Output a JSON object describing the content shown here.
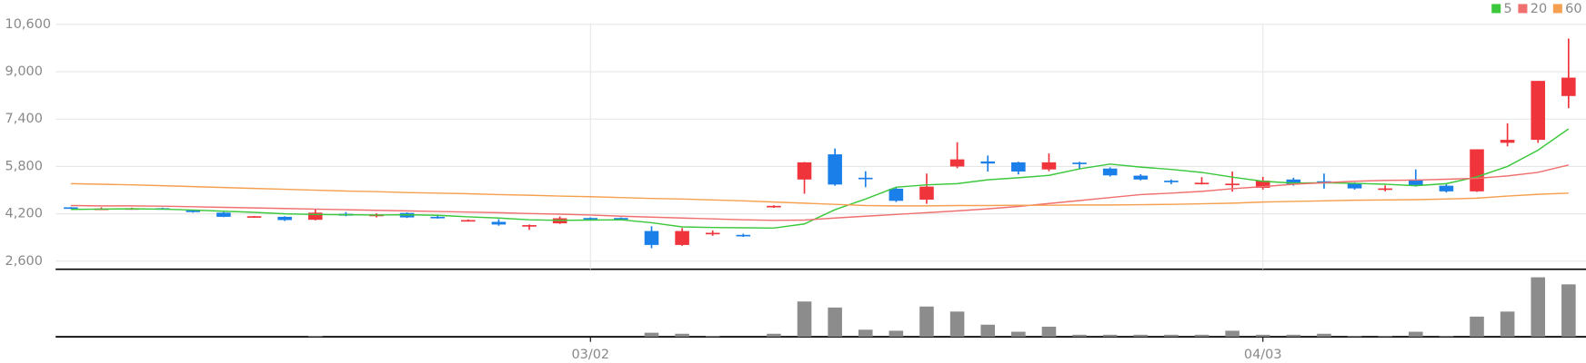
{
  "chart_data": {
    "type": "candlestick",
    "categories": [
      null,
      null,
      null,
      null,
      null,
      null,
      null,
      null,
      null,
      null,
      null,
      null,
      null,
      null,
      null,
      null,
      null,
      "03/02",
      null,
      null,
      null,
      null,
      null,
      null,
      null,
      null,
      null,
      null,
      null,
      null,
      null,
      null,
      null,
      null,
      null,
      null,
      null,
      null,
      null,
      "04/03",
      null,
      null,
      null,
      null,
      null,
      null,
      null,
      null,
      null,
      null
    ],
    "up_color": "#f0343c",
    "down_color": "#1a7fe8",
    "open": [
      4420,
      4360,
      4370,
      4390,
      4310,
      4240,
      4100,
      4100,
      4000,
      4200,
      4120,
      4230,
      4100,
      3960,
      3930,
      3790,
      3880,
      4060,
      4060,
      3620,
      3150,
      3520,
      3490,
      4420,
      5360,
      6210,
      5420,
      5050,
      4680,
      5800,
      5970,
      5940,
      5700,
      5930,
      5730,
      5490,
      5320,
      5220,
      5180,
      5080,
      5360,
      5300,
      5220,
      5010,
      5360,
      5150,
      4960,
      6600,
      6700,
      8180
    ],
    "high": [
      4430,
      4420,
      4410,
      4410,
      4340,
      4260,
      4130,
      4120,
      4370,
      4260,
      4220,
      4250,
      4130,
      4010,
      4020,
      3840,
      4110,
      4080,
      4080,
      3780,
      3720,
      3640,
      3530,
      4490,
      5950,
      6410,
      5640,
      5090,
      5560,
      6620,
      6170,
      5960,
      6240,
      5960,
      5770,
      5540,
      5360,
      5440,
      5630,
      5450,
      5420,
      5560,
      5260,
      5160,
      5700,
      5200,
      6380,
      7260,
      8690,
      10120
    ],
    "low": [
      4390,
      4330,
      4340,
      4360,
      4240,
      4090,
      4080,
      3960,
      3980,
      4120,
      4080,
      4060,
      4040,
      3940,
      3800,
      3660,
      3860,
      4000,
      4000,
      3040,
      3120,
      3460,
      3420,
      4400,
      4880,
      5150,
      5100,
      4600,
      4540,
      5740,
      5630,
      5530,
      5640,
      5700,
      5460,
      5330,
      5200,
      5190,
      4950,
      5020,
      5150,
      5050,
      5020,
      4960,
      5120,
      4920,
      4940,
      6480,
      6600,
      7770
    ],
    "close": [
      4400,
      4380,
      4390,
      4370,
      4260,
      4100,
      4120,
      3990,
      4240,
      4140,
      4180,
      4080,
      4060,
      3990,
      3840,
      3820,
      4050,
      4020,
      4020,
      3150,
      3620,
      3560,
      3450,
      4470,
      5940,
      5190,
      5370,
      4640,
      5120,
      6040,
      5900,
      5630,
      5940,
      5880,
      5500,
      5360,
      5280,
      5250,
      5220,
      5320,
      5200,
      5250,
      5060,
      5060,
      5150,
      4960,
      6380,
      6700,
      8690,
      8800
    ],
    "series": [
      {
        "name": "5",
        "color": "#3cc83c",
        "values": [
          4350,
          4360,
          4370,
          4360,
          4330,
          4290,
          4250,
          4200,
          4180,
          4170,
          4160,
          4170,
          4150,
          4100,
          4060,
          4000,
          3980,
          3990,
          4000,
          3900,
          3760,
          3740,
          3730,
          3720,
          3860,
          4340,
          4700,
          5100,
          5180,
          5220,
          5350,
          5420,
          5500,
          5720,
          5880,
          5780,
          5700,
          5600,
          5440,
          5300,
          5240,
          5250,
          5230,
          5200,
          5150,
          5220,
          5450,
          5800,
          6350,
          7070
        ]
      },
      {
        "name": "20",
        "color": "#f07070",
        "values": [
          4480,
          4470,
          4470,
          4460,
          4440,
          4420,
          4400,
          4380,
          4360,
          4340,
          4320,
          4300,
          4280,
          4260,
          4240,
          4210,
          4190,
          4160,
          4120,
          4090,
          4060,
          4030,
          4000,
          3980,
          3990,
          4060,
          4120,
          4180,
          4240,
          4300,
          4370,
          4450,
          4550,
          4650,
          4750,
          4850,
          4900,
          4960,
          5050,
          5120,
          5200,
          5250,
          5300,
          5330,
          5340,
          5370,
          5400,
          5480,
          5600,
          5850
        ]
      },
      {
        "name": "60",
        "color": "#f5a050",
        "values": [
          5220,
          5200,
          5180,
          5150,
          5120,
          5090,
          5060,
          5030,
          5000,
          4970,
          4950,
          4920,
          4900,
          4880,
          4850,
          4830,
          4800,
          4780,
          4750,
          4720,
          4700,
          4670,
          4640,
          4600,
          4560,
          4520,
          4480,
          4470,
          4470,
          4480,
          4480,
          4490,
          4490,
          4500,
          4500,
          4510,
          4520,
          4540,
          4560,
          4600,
          4620,
          4640,
          4660,
          4670,
          4680,
          4700,
          4730,
          4800,
          4860,
          4900
        ]
      }
    ],
    "ylim": [
      2330,
      11150
    ],
    "yticks": [
      {
        "value": 2600,
        "label": "2,600"
      },
      {
        "value": 4200,
        "label": "4,200"
      },
      {
        "value": 5800,
        "label": "5,800"
      },
      {
        "value": 7400,
        "label": "7,400"
      },
      {
        "value": 9000,
        "label": "9,000"
      },
      {
        "value": 10600,
        "label": "10,600"
      }
    ],
    "grid": true,
    "volume": {
      "color": "#8c8c8c",
      "ylim": [
        0,
        66
      ],
      "values": [
        0,
        0,
        0,
        0,
        0,
        0,
        0,
        0,
        1,
        0,
        0,
        0,
        0,
        0,
        0,
        0,
        0,
        0,
        0,
        4,
        3,
        1,
        0,
        3,
        35,
        29,
        7,
        6,
        30,
        25,
        12,
        5,
        10,
        2,
        2,
        2,
        2,
        2,
        6,
        2,
        2,
        3,
        1,
        1,
        5,
        1,
        20,
        25,
        59,
        52
      ]
    },
    "legend": "top-right"
  }
}
